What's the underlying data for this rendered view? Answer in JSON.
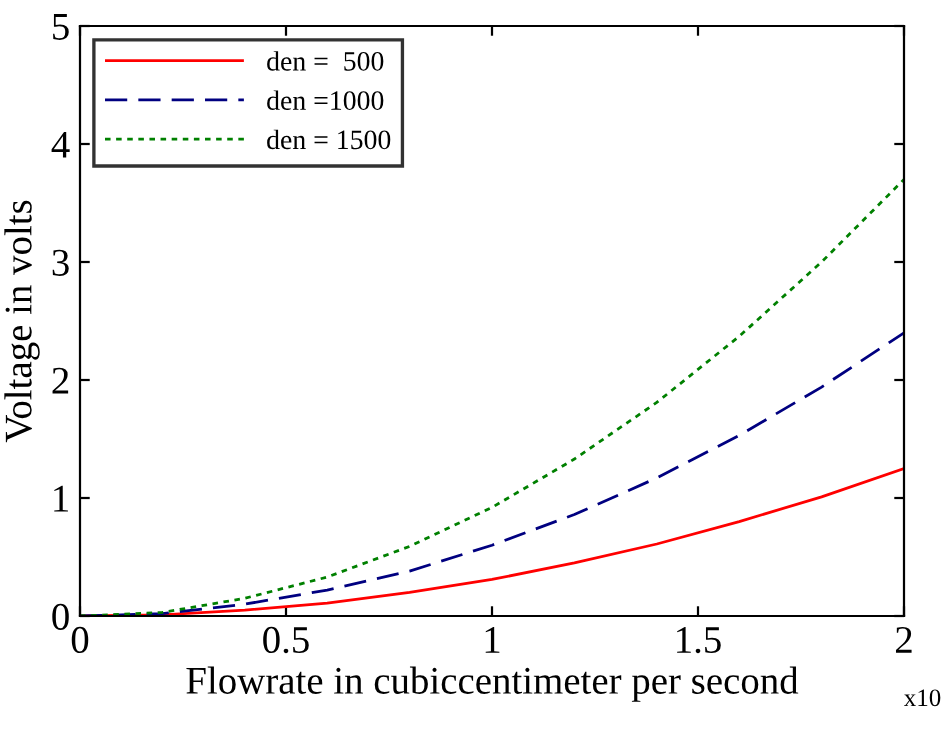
{
  "chart_data": {
    "type": "line",
    "xlabel": "Flowrate in cubiccentimeter per second",
    "ylabel": "Voltage in volts",
    "x": [
      0,
      0.2,
      0.4,
      0.6,
      0.8,
      1.0,
      1.2,
      1.4,
      1.6,
      1.8,
      2.0
    ],
    "series": [
      {
        "name": "den =  500",
        "color": "#ff0000",
        "line_style": "solid",
        "values": [
          0,
          0.01,
          0.05,
          0.11,
          0.2,
          0.31,
          0.45,
          0.61,
          0.8,
          1.01,
          1.25
        ]
      },
      {
        "name": "den =1000",
        "color": "#000080",
        "line_style": "dashed",
        "values": [
          0,
          0.02,
          0.1,
          0.22,
          0.38,
          0.6,
          0.86,
          1.17,
          1.53,
          1.94,
          2.4
        ]
      },
      {
        "name": "den = 1500",
        "color": "#008000",
        "line_style": "dotted",
        "values": [
          0,
          0.03,
          0.15,
          0.33,
          0.59,
          0.92,
          1.33,
          1.81,
          2.37,
          3.0,
          3.7
        ]
      }
    ],
    "xlim": [
      0,
      2
    ],
    "ylim": [
      0,
      5
    ],
    "xticks": [
      0,
      0.5,
      1,
      1.5,
      2
    ],
    "yticks": [
      0,
      1,
      2,
      3,
      4,
      5
    ],
    "legend": "top left",
    "grid": false,
    "annotations": [
      "x10"
    ]
  }
}
